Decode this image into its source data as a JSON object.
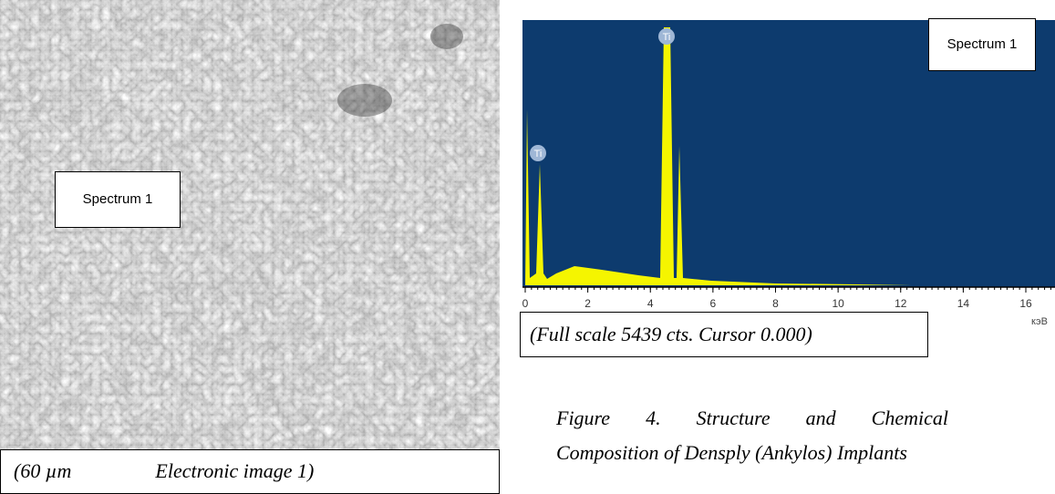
{
  "left_panel": {
    "label": "Spectrum 1",
    "caption": [
      "(60 µm",
      "Electronic image 1)"
    ]
  },
  "spectrum": {
    "label": "Spectrum 1",
    "peak_labels": [
      "Ti",
      "Ti"
    ],
    "xticks": [
      0,
      2,
      4,
      6,
      8,
      10,
      12,
      14,
      16
    ],
    "xlim": [
      0,
      17.2
    ],
    "unit": "кэВ",
    "caption": "(Full scale 5439 cts. Cursor 0.000)"
  },
  "figure_caption": [
    "Figure 4. Structure and Chemical",
    "Composition of Densply  (Ankylos) Implants"
  ]
}
